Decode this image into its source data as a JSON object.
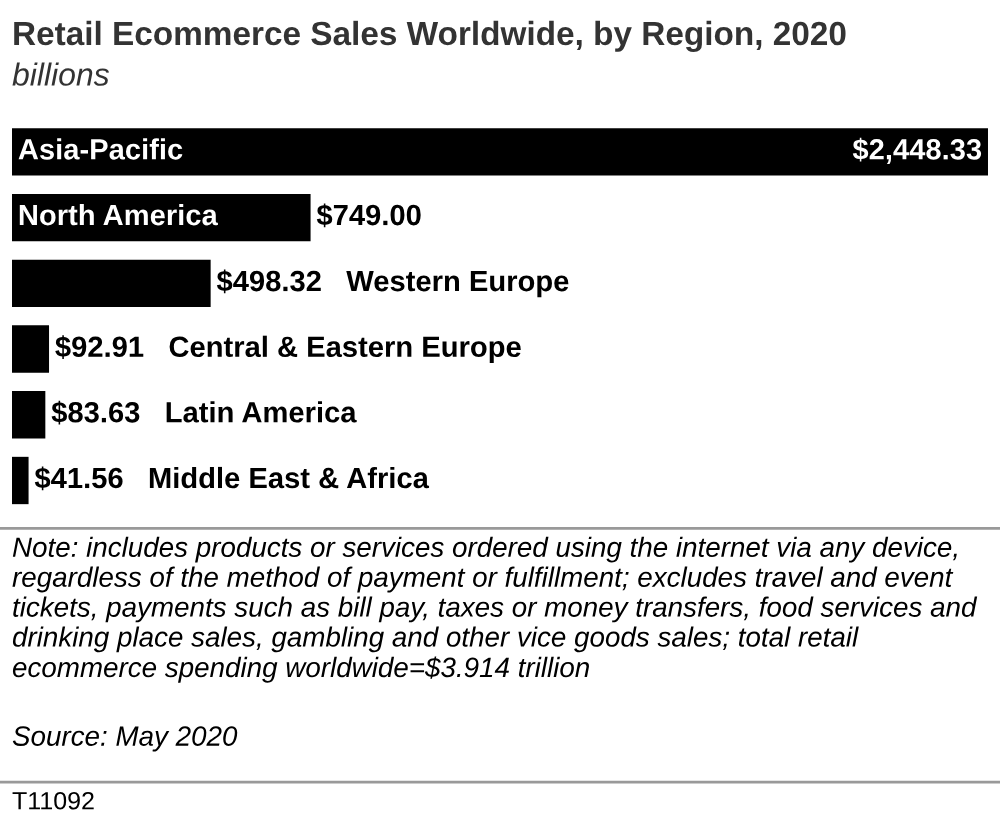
{
  "chart_data": {
    "type": "bar",
    "orientation": "horizontal",
    "title": "Retail Ecommerce Sales Worldwide, by Region, 2020",
    "subtitle": "billions",
    "categories": [
      "Asia-Pacific",
      "North America",
      "Western Europe",
      "Central & Eastern Europe",
      "Latin America",
      "Middle East & Africa"
    ],
    "values": [
      2448.33,
      749.0,
      498.32,
      92.91,
      83.63,
      41.56
    ],
    "value_labels": [
      "$2,448.33",
      "$749.00",
      "$498.32",
      "$92.91",
      "$83.63",
      "$41.56"
    ],
    "color": "#000000",
    "annotations": [
      "Note: includes products or services ordered using the internet via any device, regardless of the method of payment or fulfillment; excludes travel and event tickets, payments such as bill pay, taxes or money transfers, food services and drinking place sales, gambling and other vice goods sales; total retail ecommerce spending worldwide=$3.914 trillion",
      "Source: May 2020",
      "T11092"
    ]
  }
}
